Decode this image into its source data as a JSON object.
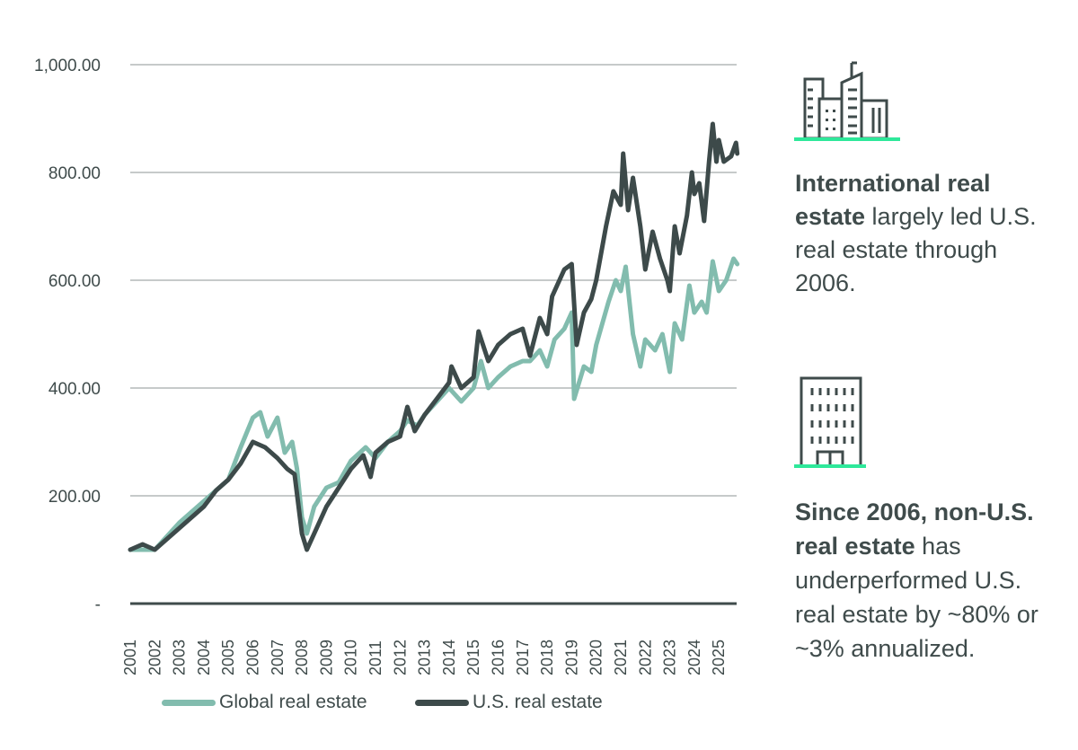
{
  "chart_data": {
    "type": "line",
    "title": "",
    "xlabel": "",
    "ylabel": "",
    "ylim": [
      0,
      1000
    ],
    "xlim": [
      2001,
      2025.75
    ],
    "grid": true,
    "legend": "bottom",
    "y_ticks": [
      "-",
      "200.00",
      "400.00",
      "600.00",
      "800.00",
      "1,000.00"
    ],
    "x_ticks": [
      "2001",
      "2002",
      "2003",
      "2004",
      "2005",
      "2006",
      "2007",
      "2008",
      "2009",
      "2010",
      "2011",
      "2012",
      "2013",
      "2014",
      "2015",
      "2016",
      "2017",
      "2018",
      "2019",
      "2020",
      "2021",
      "2022",
      "2023",
      "2024",
      "2025"
    ],
    "series": [
      {
        "name": "Global real estate",
        "color": "#82bcae",
        "x": [
          2001,
          2002,
          2003,
          2004,
          2005,
          2005.5,
          2006,
          2006.3,
          2006.6,
          2007,
          2007.3,
          2007.6,
          2007.8,
          2008,
          2008.2,
          2008.5,
          2009,
          2009.5,
          2010,
          2010.6,
          2011,
          2011.5,
          2012,
          2012.3,
          2012.7,
          2013,
          2013.5,
          2014,
          2014.5,
          2015,
          2015.3,
          2015.6,
          2016,
          2016.5,
          2017,
          2017.3,
          2017.7,
          2018,
          2018.3,
          2018.7,
          2019,
          2019.1,
          2019.5,
          2019.8,
          2020,
          2020.5,
          2020.8,
          2021,
          2021.2,
          2021.5,
          2021.8,
          2022,
          2022.4,
          2022.7,
          2023,
          2023.2,
          2023.5,
          2023.8,
          2024,
          2024.3,
          2024.5,
          2024.75,
          2025,
          2025.3,
          2025.6,
          2025.75
        ],
        "y": [
          100,
          100,
          150,
          190,
          230,
          290,
          345,
          355,
          310,
          345,
          280,
          300,
          250,
          160,
          130,
          180,
          215,
          225,
          265,
          290,
          270,
          300,
          320,
          340,
          330,
          350,
          375,
          400,
          375,
          400,
          450,
          400,
          420,
          440,
          450,
          450,
          470,
          440,
          490,
          510,
          540,
          380,
          440,
          430,
          480,
          560,
          600,
          580,
          625,
          500,
          440,
          490,
          470,
          500,
          430,
          520,
          490,
          590,
          540,
          560,
          540,
          635,
          580,
          600,
          640,
          630
        ]
      },
      {
        "name": "U.S. real estate",
        "color": "#3d4a4a",
        "x": [
          2001,
          2001.5,
          2002,
          2003,
          2004,
          2004.5,
          2005,
          2005.5,
          2006,
          2006.5,
          2007,
          2007.4,
          2007.7,
          2008,
          2008.2,
          2008.6,
          2009,
          2009.5,
          2010,
          2010.5,
          2010.8,
          2011,
          2011.5,
          2012,
          2012.3,
          2012.6,
          2013,
          2013.5,
          2014,
          2014.1,
          2014.5,
          2015,
          2015.2,
          2015.6,
          2016,
          2016.5,
          2017,
          2017.3,
          2017.7,
          2018,
          2018.2,
          2018.7,
          2019,
          2019.2,
          2019.5,
          2019.8,
          2020,
          2020.4,
          2020.7,
          2021,
          2021.1,
          2021.3,
          2021.5,
          2021.8,
          2022,
          2022.3,
          2022.6,
          2022.9,
          2023,
          2023.2,
          2023.4,
          2023.7,
          2023.9,
          2024,
          2024.2,
          2024.4,
          2024.6,
          2024.75,
          2024.9,
          2025,
          2025.2,
          2025.5,
          2025.7,
          2025.75
        ],
        "y": [
          100,
          110,
          100,
          140,
          180,
          210,
          230,
          260,
          300,
          290,
          270,
          250,
          240,
          130,
          100,
          140,
          180,
          215,
          250,
          275,
          235,
          280,
          300,
          310,
          365,
          320,
          350,
          380,
          410,
          440,
          400,
          420,
          505,
          450,
          480,
          500,
          510,
          460,
          530,
          500,
          570,
          620,
          630,
          480,
          540,
          565,
          600,
          700,
          765,
          740,
          835,
          730,
          790,
          700,
          620,
          690,
          640,
          600,
          580,
          700,
          650,
          720,
          800,
          760,
          780,
          710,
          820,
          890,
          820,
          860,
          820,
          830,
          855,
          835
        ]
      }
    ]
  },
  "legend": {
    "global": "Global real estate",
    "us": "U.S. real estate"
  },
  "callouts": {
    "first": {
      "bold": "International real estate",
      "text": " largely led U.S. real estate through 2006.",
      "icon": "city-skyline-icon"
    },
    "second": {
      "bold": "Since 2006, non-U.S. real estate",
      "text": " has underperformed U.S. real estate by ~80% or ~3% annualized.",
      "icon": "office-building-icon"
    }
  },
  "colors": {
    "accent": "#2ee89a",
    "text": "#3f4b4b"
  }
}
